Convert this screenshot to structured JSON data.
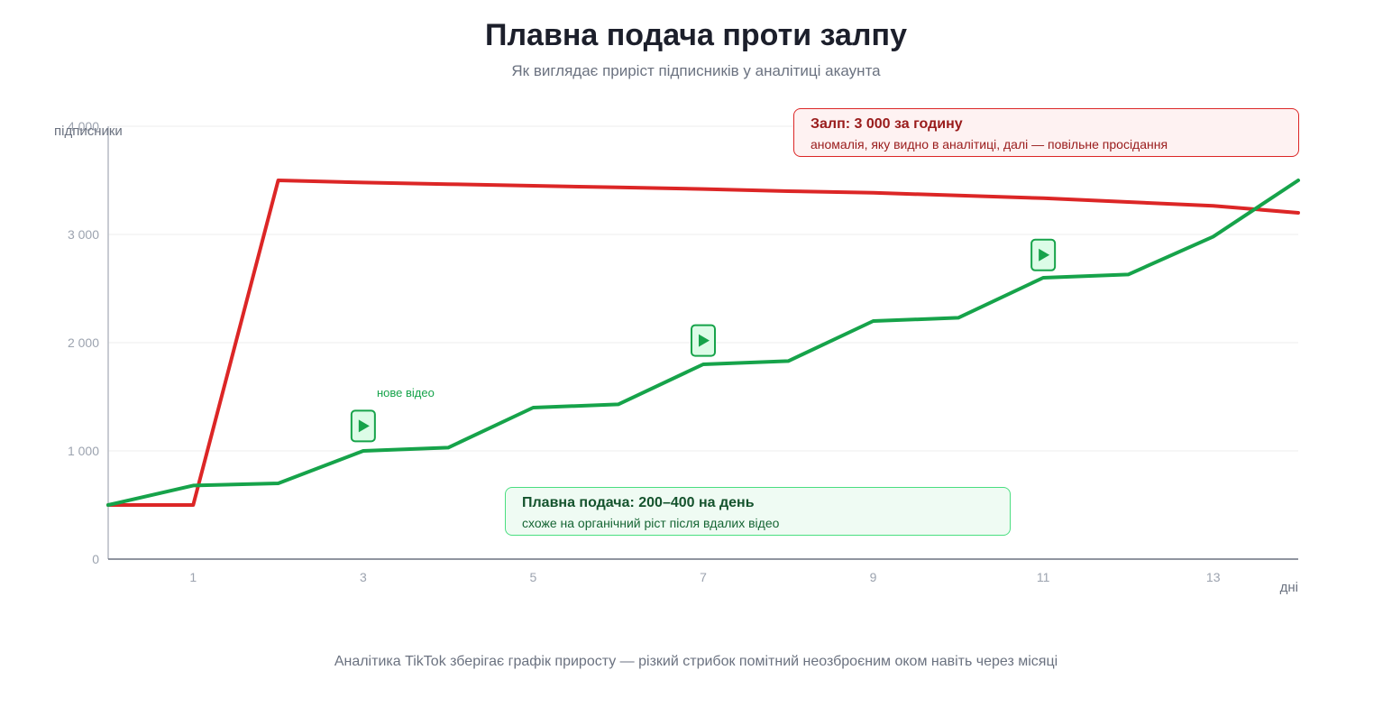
{
  "header": {
    "title": "Плавна подача проти залпу",
    "subtitle": "Як виглядає приріст підписників у аналітиці акаунта"
  },
  "footer": {
    "text": "Аналітика TikTok зберігає графік приросту — різкий стрибок помітний неозброєним оком навіть через місяці"
  },
  "callouts": {
    "burst": {
      "title": "Залп: 3 000 за годину",
      "subtitle": "аномалія, яку видно в аналітиці, далі — повільне просідання"
    },
    "smooth": {
      "title": "Плавна подача: 200–400 на день",
      "subtitle": "схоже на органічний ріст після вдалих відео"
    },
    "new_video_note": "нове відео"
  },
  "chart_data": {
    "type": "line",
    "xlabel": "дні",
    "ylabel": "підписники",
    "xlim": [
      0,
      14
    ],
    "ylim": [
      0,
      4000
    ],
    "xticks": [
      1,
      3,
      5,
      7,
      9,
      11,
      13
    ],
    "yticks": [
      0,
      1000,
      2000,
      3000,
      4000
    ],
    "ytick_labels": [
      "0",
      "1 000",
      "2 000",
      "3 000",
      "4 000"
    ],
    "grid": true,
    "series": [
      {
        "key": "burst",
        "color": "#dc2626",
        "x": [
          0,
          1,
          2,
          3,
          4,
          5,
          6,
          7,
          8,
          9,
          10,
          11,
          12,
          13,
          14
        ],
        "values": [
          500,
          500,
          3500,
          3480,
          3465,
          3450,
          3435,
          3420,
          3400,
          3385,
          3360,
          3335,
          3300,
          3265,
          3200
        ]
      },
      {
        "key": "smooth",
        "color": "#16a34a",
        "x": [
          0,
          1,
          2,
          3,
          4,
          5,
          6,
          7,
          8,
          9,
          10,
          11,
          12,
          13,
          14
        ],
        "values": [
          500,
          680,
          700,
          1000,
          1030,
          1400,
          1430,
          1800,
          1830,
          2200,
          2230,
          2600,
          2630,
          2980,
          3500
        ]
      }
    ],
    "video_markers": [
      {
        "x": 3,
        "y": 1230,
        "icon": "play-icon"
      },
      {
        "x": 7,
        "y": 2020,
        "icon": "play-icon"
      },
      {
        "x": 11,
        "y": 2810,
        "icon": "play-icon"
      }
    ]
  }
}
